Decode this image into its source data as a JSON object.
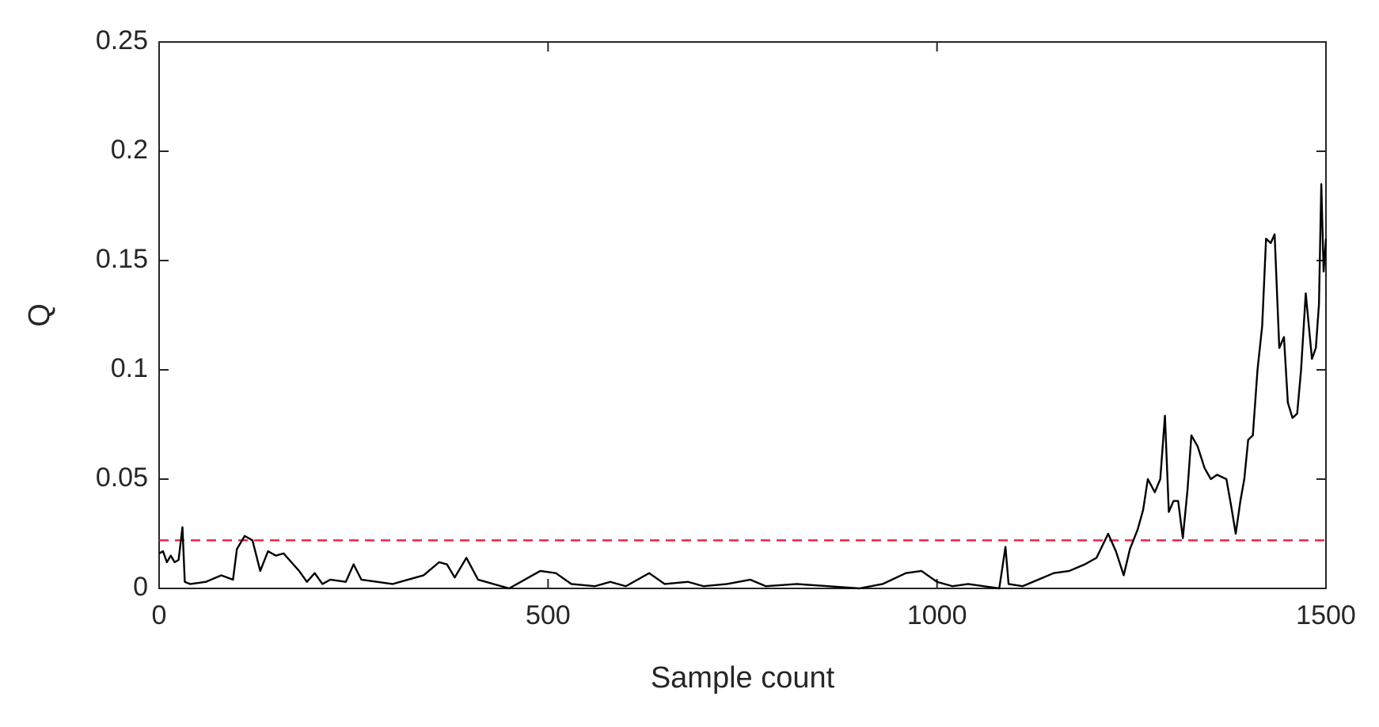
{
  "chart_data": {
    "type": "line",
    "xlabel": "Sample count",
    "ylabel": "Q",
    "xlim": [
      0,
      1500
    ],
    "xticks": [
      0,
      500,
      1000,
      1500
    ],
    "ylim": [
      0,
      0.25
    ],
    "yticks": [
      0,
      0.05,
      0.1,
      0.15,
      0.2,
      0.25
    ],
    "x": [
      0,
      5,
      10,
      15,
      20,
      25,
      30,
      33,
      40,
      60,
      80,
      95,
      100,
      110,
      120,
      130,
      140,
      150,
      160,
      170,
      180,
      190,
      200,
      210,
      220,
      240,
      250,
      260,
      280,
      300,
      320,
      340,
      360,
      370,
      380,
      395,
      410,
      430,
      450,
      470,
      490,
      510,
      530,
      560,
      580,
      600,
      630,
      650,
      680,
      700,
      730,
      760,
      780,
      820,
      860,
      900,
      930,
      960,
      980,
      1000,
      1020,
      1040,
      1060,
      1080,
      1088,
      1092,
      1110,
      1130,
      1150,
      1170,
      1190,
      1205,
      1220,
      1230,
      1240,
      1248,
      1258,
      1265,
      1271,
      1280,
      1287,
      1293,
      1298,
      1304,
      1310,
      1316,
      1322,
      1327,
      1335,
      1344,
      1352,
      1360,
      1372,
      1378,
      1384,
      1390,
      1395,
      1400,
      1406,
      1412,
      1418,
      1423,
      1429,
      1434,
      1440,
      1446,
      1451,
      1457,
      1463,
      1468,
      1474,
      1478,
      1482,
      1487,
      1491,
      1494,
      1497,
      1500
    ],
    "series": [
      {
        "color": "#000000",
        "values": [
          0.016,
          0.017,
          0.012,
          0.015,
          0.012,
          0.013,
          0.028,
          0.003,
          0.002,
          0.003,
          0.006,
          0.004,
          0.018,
          0.024,
          0.022,
          0.008,
          0.017,
          0.015,
          0.016,
          0.012,
          0.008,
          0.003,
          0.007,
          0.002,
          0.004,
          0.003,
          0.011,
          0.004,
          0.003,
          0.002,
          0.004,
          0.006,
          0.012,
          0.011,
          0.005,
          0.014,
          0.004,
          0.002,
          0.0,
          0.004,
          0.008,
          0.007,
          0.002,
          0.001,
          0.003,
          0.001,
          0.007,
          0.002,
          0.003,
          0.001,
          0.002,
          0.004,
          0.001,
          0.002,
          0.001,
          0.0,
          0.002,
          0.007,
          0.008,
          0.003,
          0.001,
          0.002,
          0.001,
          0.0,
          0.019,
          0.002,
          0.001,
          0.004,
          0.007,
          0.008,
          0.011,
          0.014,
          0.025,
          0.017,
          0.006,
          0.018,
          0.027,
          0.036,
          0.05,
          0.044,
          0.05,
          0.079,
          0.035,
          0.04,
          0.04,
          0.023,
          0.045,
          0.07,
          0.065,
          0.055,
          0.05,
          0.052,
          0.05,
          0.038,
          0.025,
          0.04,
          0.05,
          0.068,
          0.07,
          0.1,
          0.12,
          0.16,
          0.158,
          0.162,
          0.11,
          0.115,
          0.085,
          0.078,
          0.08,
          0.1,
          0.135,
          0.12,
          0.105,
          0.11,
          0.13,
          0.185,
          0.145,
          0.16
        ]
      }
    ],
    "hlines": [
      {
        "value": 0.022,
        "color": "#e8203c",
        "style": "dashed"
      }
    ]
  }
}
